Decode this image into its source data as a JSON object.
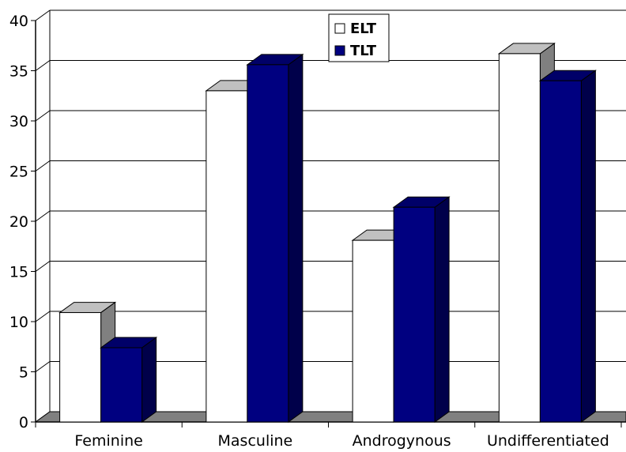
{
  "chart_data": {
    "type": "bar",
    "categories": [
      "Feminine",
      "Masculine",
      "Androgynous",
      "Undifferentiated"
    ],
    "series": [
      {
        "name": "ELT",
        "values": [
          10.9,
          33.0,
          18.1,
          36.7
        ],
        "color": "#ffffff"
      },
      {
        "name": "TLT",
        "values": [
          7.4,
          35.6,
          21.4,
          34.0
        ],
        "color": "#000080"
      }
    ],
    "y_ticks": [
      "0",
      "5",
      "10",
      "15",
      "20",
      "25",
      "30",
      "35",
      "40"
    ],
    "ylim": [
      0,
      40
    ],
    "grid": true,
    "legend_position": "top-center",
    "style": "3d-column"
  }
}
